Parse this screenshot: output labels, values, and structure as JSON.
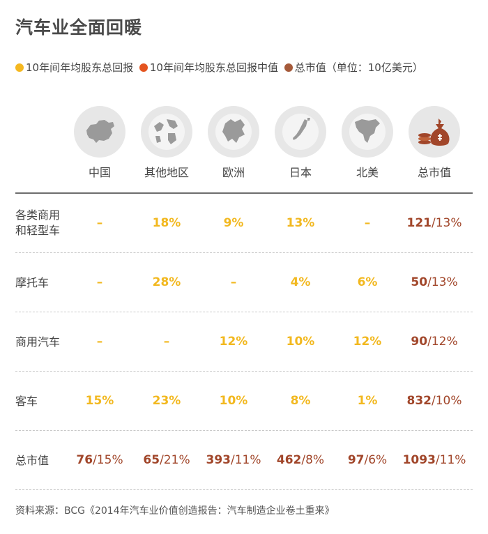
{
  "title": "汽车业全面回暖",
  "colors": {
    "avg": "#f2b81f",
    "median": "#e4572e",
    "market": "#a1462a",
    "dash": "#f2b81f"
  },
  "legend": [
    {
      "label": "10年间年均股东总回报",
      "color": "#f5b820"
    },
    {
      "label": "10年间年均股东总回报中值",
      "color": "#e4541f"
    },
    {
      "label": "总市值（单位：10亿美元）",
      "color": "#a55a3a"
    }
  ],
  "columns": [
    {
      "label": "中国",
      "icon": "china-map-icon"
    },
    {
      "label": "其他地区",
      "icon": "globe-icon"
    },
    {
      "label": "欧洲",
      "icon": "europe-map-icon"
    },
    {
      "label": "日本",
      "icon": "japan-map-icon"
    },
    {
      "label": "北美",
      "icon": "north-america-map-icon"
    },
    {
      "label": "总市值",
      "icon": "money-bag-icon"
    }
  ],
  "chart_data": {
    "type": "table",
    "title": "汽车业全面回暖",
    "columns": [
      "中国",
      "其他地区",
      "欧洲",
      "日本",
      "北美",
      "总市值"
    ],
    "rows": [
      {
        "label": "各类商用和轻型车",
        "label_lines": [
          "各类商用",
          "和轻型车"
        ],
        "values": [
          "–",
          "18%",
          "9%",
          "13%",
          "–"
        ],
        "total": {
          "value": "121",
          "pct": "/13%"
        }
      },
      {
        "label": "摩托车",
        "label_lines": [
          "摩托车"
        ],
        "values": [
          "–",
          "28%",
          "–",
          "4%",
          "6%"
        ],
        "total": {
          "value": "50",
          "pct": "/13%"
        }
      },
      {
        "label": "商用汽车",
        "label_lines": [
          "商用汽车"
        ],
        "values": [
          "–",
          "–",
          "12%",
          "10%",
          "12%"
        ],
        "total": {
          "value": "90",
          "pct": "/12%"
        }
      },
      {
        "label": "客车",
        "label_lines": [
          "客车"
        ],
        "values": [
          "15%",
          "23%",
          "10%",
          "8%",
          "1%"
        ],
        "total": {
          "value": "832",
          "pct": "/10%"
        }
      }
    ],
    "total_row": {
      "label": "总市值",
      "cells": [
        {
          "value": "76",
          "pct": "/15%"
        },
        {
          "value": "65",
          "pct": "/21%"
        },
        {
          "value": "393",
          "pct": "/11%"
        },
        {
          "value": "462",
          "pct": "/8%"
        },
        {
          "value": "97",
          "pct": "/6%"
        },
        {
          "value": "1093",
          "pct": "/11%"
        }
      ]
    }
  },
  "source": "资料来源：BCG《2014年汽车业价值创造报告：汽车制造企业卷土重来》"
}
